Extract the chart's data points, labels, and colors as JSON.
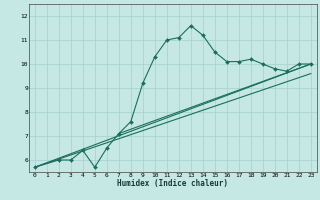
{
  "xlabel": "Humidex (Indice chaleur)",
  "bg_color": "#c5e8e5",
  "grid_color": "#aad4d0",
  "line_color": "#1a6e5e",
  "xlim": [
    -0.5,
    23.5
  ],
  "ylim": [
    5.5,
    12.5
  ],
  "xticks": [
    0,
    1,
    2,
    3,
    4,
    5,
    6,
    7,
    8,
    9,
    10,
    11,
    12,
    13,
    14,
    15,
    16,
    17,
    18,
    19,
    20,
    21,
    22,
    23
  ],
  "yticks": [
    6,
    7,
    8,
    9,
    10,
    11,
    12
  ],
  "curve1_x": [
    0,
    2,
    3,
    4,
    5,
    6,
    7,
    8,
    9,
    10,
    11,
    12,
    13,
    14,
    15,
    16,
    17,
    18,
    19,
    20,
    21,
    22,
    23
  ],
  "curve1_y": [
    5.7,
    6.0,
    6.0,
    6.4,
    5.7,
    6.5,
    7.1,
    7.6,
    9.2,
    10.3,
    11.0,
    11.1,
    11.6,
    11.2,
    10.5,
    10.1,
    10.1,
    10.2,
    10.0,
    9.8,
    9.7,
    10.0,
    10.0
  ],
  "curve2_x": [
    0,
    23
  ],
  "curve2_y": [
    5.7,
    10.0
  ],
  "curve3_x": [
    0,
    23
  ],
  "curve3_y": [
    5.7,
    9.6
  ],
  "curve4_x": [
    7,
    23
  ],
  "curve4_y": [
    7.1,
    10.0
  ]
}
